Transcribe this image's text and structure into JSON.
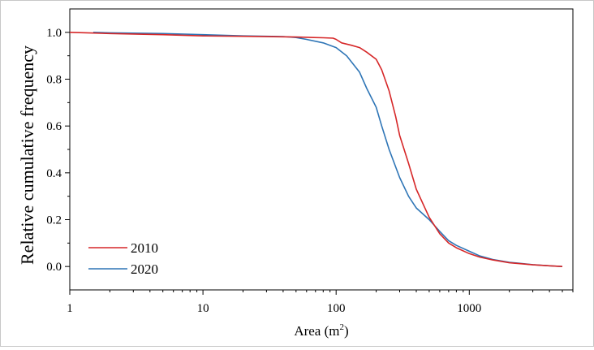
{
  "chart_data": {
    "type": "line",
    "title": "",
    "xlabel": "Area (m",
    "xlabel_sup": "2",
    "xlabel_close": ")",
    "ylabel": "Relative cumulative frequency",
    "xscale": "log",
    "xlim": [
      1,
      6000
    ],
    "ylim": [
      -0.1,
      1.1
    ],
    "x_ticks": [
      1,
      10,
      100,
      1000
    ],
    "x_tick_labels": [
      "1",
      "10",
      "100",
      "1000"
    ],
    "y_ticks": [
      0.0,
      0.2,
      0.4,
      0.6,
      0.8,
      1.0
    ],
    "y_tick_labels": [
      "0.0",
      "0.2",
      "0.4",
      "0.6",
      "0.8",
      "1.0"
    ],
    "grid": false,
    "legend_position": "bottom-left",
    "series": [
      {
        "name": "2010",
        "color": "#d62728",
        "x": [
          1,
          2,
          5,
          10,
          20,
          50,
          80,
          95,
          100,
          110,
          130,
          150,
          170,
          200,
          220,
          250,
          280,
          300,
          350,
          400,
          500,
          600,
          700,
          800,
          1000,
          1200,
          1500,
          2000,
          3000,
          4000,
          5000
        ],
        "y": [
          1.0,
          0.995,
          0.99,
          0.985,
          0.983,
          0.98,
          0.977,
          0.975,
          0.97,
          0.955,
          0.945,
          0.935,
          0.915,
          0.885,
          0.84,
          0.75,
          0.64,
          0.56,
          0.44,
          0.33,
          0.21,
          0.14,
          0.1,
          0.08,
          0.055,
          0.04,
          0.028,
          0.016,
          0.007,
          0.003,
          0.0
        ]
      },
      {
        "name": "2020",
        "color": "#2e75b6",
        "x": [
          1.5,
          2,
          5,
          10,
          20,
          40,
          50,
          60,
          80,
          100,
          120,
          150,
          170,
          200,
          220,
          250,
          300,
          350,
          400,
          500,
          600,
          700,
          800,
          1000,
          1200,
          1500,
          2000,
          3000,
          4000,
          5000
        ],
        "y": [
          1.0,
          0.998,
          0.995,
          0.99,
          0.985,
          0.982,
          0.978,
          0.97,
          0.955,
          0.935,
          0.9,
          0.83,
          0.76,
          0.68,
          0.6,
          0.5,
          0.38,
          0.3,
          0.25,
          0.2,
          0.15,
          0.11,
          0.09,
          0.065,
          0.045,
          0.03,
          0.018,
          0.008,
          0.003,
          0.0
        ]
      }
    ]
  }
}
